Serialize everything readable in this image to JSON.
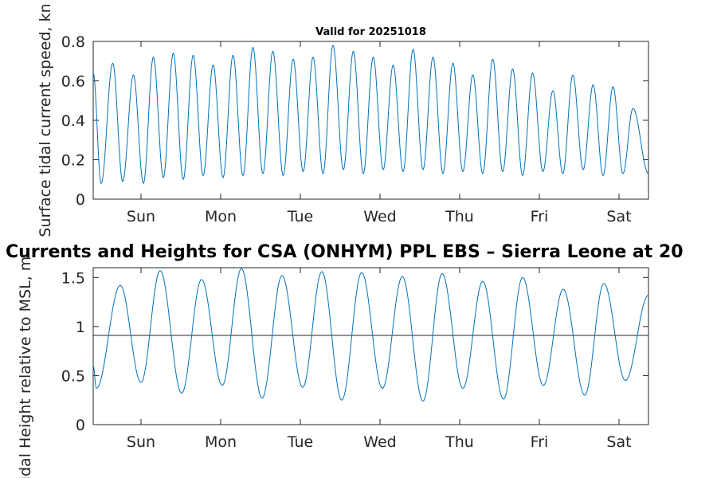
{
  "chart_data": [
    {
      "type": "line",
      "title": "Valid for 20251018",
      "ylabel": "Surface tidal current speed, kn",
      "xlabel": "",
      "x_tick_labels": [
        "Sun",
        "Mon",
        "Tue",
        "Wed",
        "Thu",
        "Fri",
        "Sat"
      ],
      "x_tick_days": [
        1,
        2,
        3,
        4,
        5,
        6,
        7
      ],
      "xlim_days": [
        0.4,
        7.37
      ],
      "ylim": [
        0,
        0.8
      ],
      "y_ticks": [
        0,
        0.2,
        0.4,
        0.6,
        0.8
      ],
      "y_tick_labels": [
        "0",
        "0.2",
        "0.4",
        "0.6",
        "0.8"
      ],
      "series": [
        {
          "name": "Current speed",
          "color": "#0072BD",
          "peaks_day": [
            0.4,
            0.645,
            0.905,
            1.155,
            1.405,
            1.655,
            1.905,
            2.155,
            2.405,
            2.655,
            2.91,
            3.16,
            3.41,
            3.665,
            3.915,
            4.165,
            4.415,
            4.665,
            4.915,
            5.165,
            5.415,
            5.665,
            5.915,
            6.17,
            6.42,
            6.675,
            6.925,
            7.175
          ],
          "peaks_value": [
            0.64,
            0.69,
            0.63,
            0.72,
            0.74,
            0.73,
            0.68,
            0.73,
            0.77,
            0.75,
            0.71,
            0.72,
            0.78,
            0.75,
            0.72,
            0.68,
            0.76,
            0.72,
            0.69,
            0.63,
            0.71,
            0.66,
            0.64,
            0.55,
            0.63,
            0.58,
            0.57,
            0.46
          ],
          "troughs_day": [
            0.5,
            0.77,
            1.03,
            1.28,
            1.53,
            1.78,
            2.03,
            2.28,
            2.53,
            2.785,
            3.035,
            3.285,
            3.54,
            3.79,
            4.04,
            4.29,
            4.54,
            4.79,
            5.04,
            5.29,
            5.54,
            5.79,
            6.045,
            6.295,
            6.55,
            6.8,
            7.05,
            7.37
          ],
          "troughs_value": [
            0.08,
            0.09,
            0.08,
            0.11,
            0.1,
            0.12,
            0.11,
            0.12,
            0.13,
            0.12,
            0.14,
            0.13,
            0.15,
            0.13,
            0.15,
            0.14,
            0.15,
            0.13,
            0.14,
            0.13,
            0.14,
            0.12,
            0.14,
            0.13,
            0.15,
            0.12,
            0.13,
            0.13
          ]
        }
      ]
    },
    {
      "type": "line",
      "title": "Currents and Heights for CSA (ONHYM) PPL EBS  – Sierra Leone at 20",
      "ylabel": "Tidal Height relative to MSL, m",
      "xlabel": "",
      "x_tick_labels": [
        "Sun",
        "Mon",
        "Tue",
        "Wed",
        "Thu",
        "Fri",
        "Sat"
      ],
      "x_tick_days": [
        1,
        2,
        3,
        4,
        5,
        6,
        7
      ],
      "xlim_days": [
        0.4,
        7.37
      ],
      "ylim": [
        0,
        1.6
      ],
      "y_ticks": [
        0,
        0.5,
        1,
        1.5
      ],
      "y_tick_labels": [
        "0",
        "0.5",
        "1",
        "1.5"
      ],
      "reference_line_value": 0.91,
      "series": [
        {
          "name": "Tidal height",
          "color": "#0072BD",
          "extrema_day": [
            0.4,
            0.44,
            0.74,
            1.0,
            1.24,
            1.51,
            1.76,
            2.02,
            2.26,
            2.52,
            2.77,
            3.03,
            3.27,
            3.52,
            3.77,
            4.03,
            4.28,
            4.54,
            4.78,
            5.04,
            5.29,
            5.55,
            5.79,
            6.05,
            6.3,
            6.57,
            6.81,
            7.08,
            7.37
          ],
          "extrema_value": [
            0.6,
            0.37,
            1.42,
            0.43,
            1.57,
            0.32,
            1.48,
            0.4,
            1.59,
            0.27,
            1.52,
            0.38,
            1.56,
            0.25,
            1.55,
            0.37,
            1.51,
            0.24,
            1.54,
            0.37,
            1.46,
            0.26,
            1.5,
            0.4,
            1.38,
            0.3,
            1.44,
            0.45,
            1.32
          ]
        }
      ]
    }
  ]
}
